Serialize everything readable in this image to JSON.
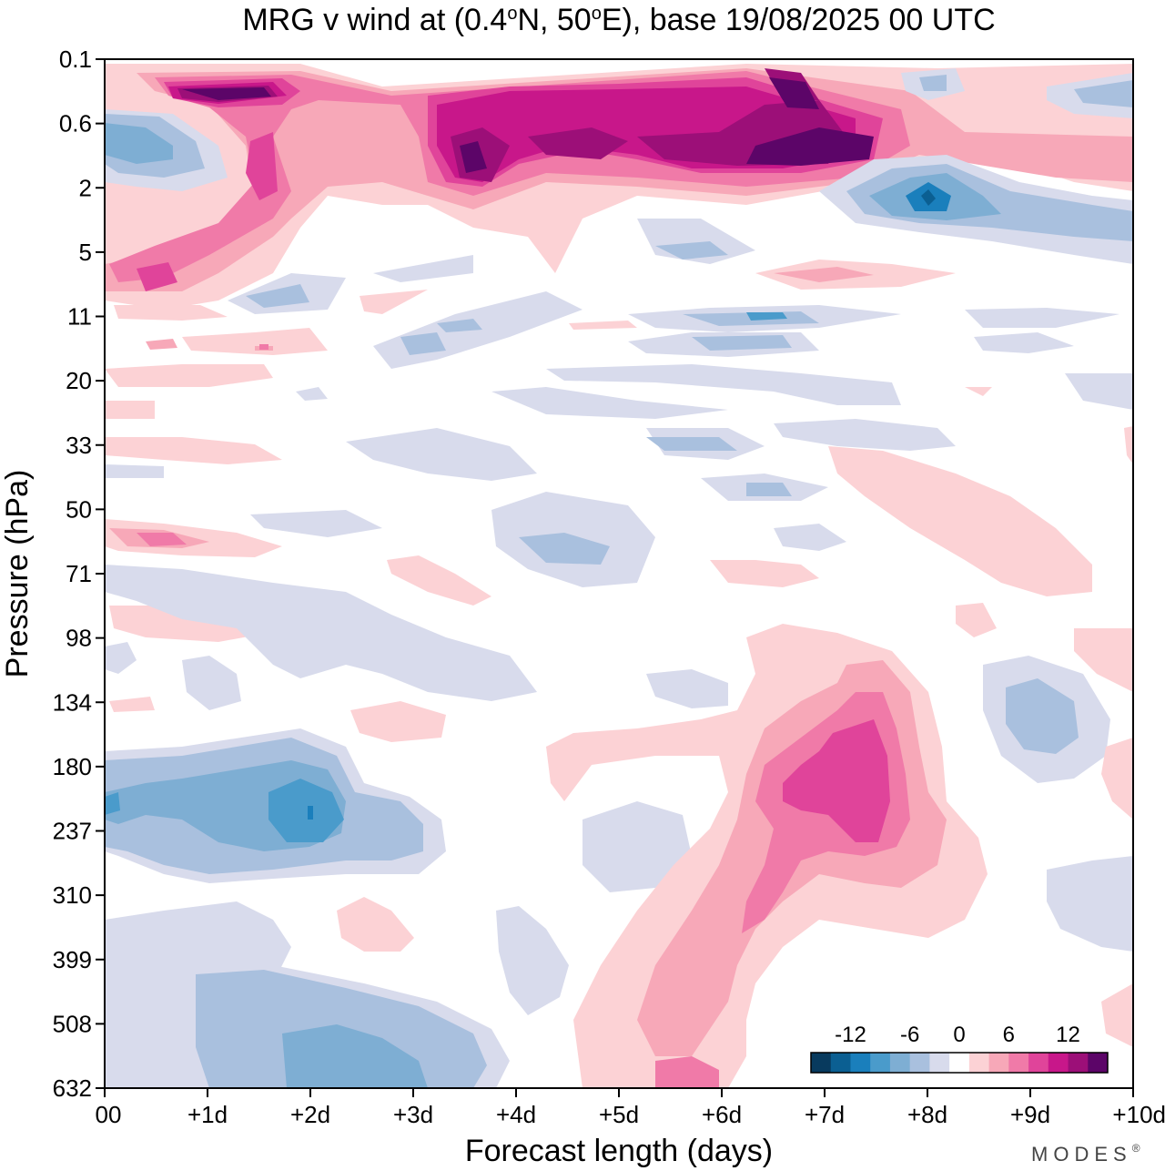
{
  "chart_data": {
    "type": "heatmap",
    "title_parts": [
      "MRG v wind at (0.4",
      "o",
      "N, 50",
      "o",
      "E),  base 19/08/2025  00 UTC"
    ],
    "xlabel": "Forecast length (days)",
    "ylabel": "Pressure (hPa)",
    "x_ticks": [
      "00",
      "+1d",
      "+2d",
      "+3d",
      "+4d",
      "+5d",
      "+6d",
      "+7d",
      "+8d",
      "+9d",
      "+10d"
    ],
    "x_range": [
      0,
      10
    ],
    "y_ticks": [
      "0.1",
      "0.6",
      "2",
      "5",
      "11",
      "20",
      "33",
      "50",
      "71",
      "98",
      "134",
      "180",
      "237",
      "310",
      "399",
      "508",
      "632"
    ],
    "colorbar": {
      "tick_labels": [
        "-12",
        "-6",
        "0",
        "6",
        "12"
      ],
      "levels": [
        -16,
        -14,
        -12,
        -10,
        -8,
        -6,
        -4,
        -2,
        2,
        4,
        6,
        8,
        10,
        12,
        14,
        16
      ],
      "colors": [
        "#083a5e",
        "#0b5f92",
        "#1a7fbc",
        "#4a9bcb",
        "#7eaed3",
        "#a9c0de",
        "#d8dbec",
        "#ffffff",
        "#fcd2d5",
        "#f7a8b8",
        "#f07aa8",
        "#e0449a",
        "#c8178a",
        "#9c0f78",
        "#5c0568"
      ]
    },
    "features": [
      {
        "name": "strat-jet-core-day1",
        "sign": "positive",
        "x": [
          0.6,
          1.9
        ],
        "y": [
          0.1,
          0.45
        ],
        "peak": 15
      },
      {
        "name": "strat-positive-day3-7",
        "sign": "positive",
        "x": [
          2.9,
          8.0
        ],
        "y": [
          0.2,
          3.0
        ],
        "peak": 16
      },
      {
        "name": "strat-negative-day8",
        "sign": "negative",
        "x": [
          7.2,
          10.0
        ],
        "y": [
          1.5,
          6.0
        ],
        "peak": -11
      },
      {
        "name": "lower-negative-day2",
        "sign": "negative",
        "x": [
          0,
          3.2
        ],
        "y": [
          150,
          330
        ],
        "peak": -10
      },
      {
        "name": "lower-positive-day7",
        "sign": "positive",
        "x": [
          4.6,
          8.3
        ],
        "y": [
          90,
          632
        ],
        "peak": 13
      },
      {
        "name": "lower-negative-surface",
        "sign": "negative",
        "x": [
          0,
          3.8
        ],
        "y": [
          380,
          632
        ],
        "peak": -8
      },
      {
        "name": "negative-day9-upper-trop",
        "sign": "negative",
        "x": [
          8.4,
          9.9
        ],
        "y": [
          100,
          200
        ],
        "peak": -6
      }
    ]
  },
  "branding": {
    "logo_text": "MODES",
    "registered_mark": "®"
  }
}
